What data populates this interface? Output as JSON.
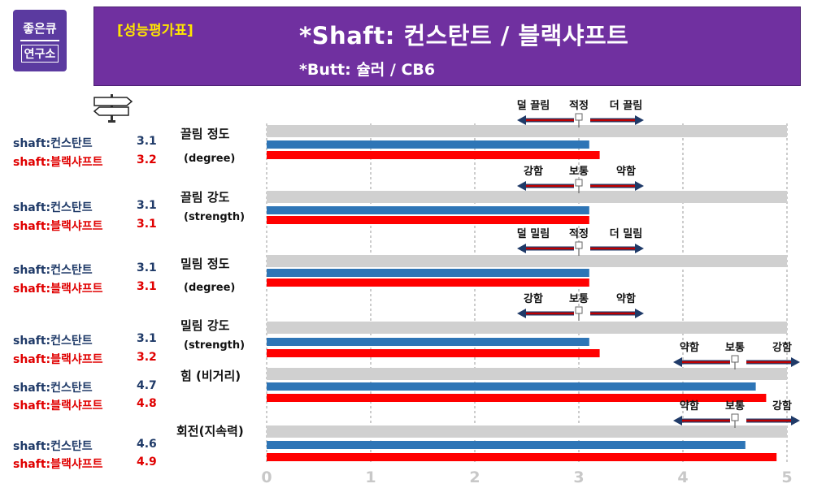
{
  "logo": {
    "line1": "좋은큐",
    "line2": "연구소"
  },
  "header": {
    "badge": "[성능평가표]",
    "title": "*Shaft: 컨스탄트 / 블랙샤프트",
    "subtitle": "*Butt: 슐러 / CB6"
  },
  "legend": [
    {
      "label": "shaft:컨스탄트",
      "value": "3.1",
      "color": "blue"
    },
    {
      "label": "shaft:블랙샤프트",
      "value": "3.2",
      "color": "red"
    },
    {
      "label": "shaft:컨스탄트",
      "value": "3.1",
      "color": "blue"
    },
    {
      "label": "shaft:블랙샤프트",
      "value": "3.1",
      "color": "red"
    },
    {
      "label": "shaft:컨스탄트",
      "value": "3.1",
      "color": "blue"
    },
    {
      "label": "shaft:블랙샤프트",
      "value": "3.1",
      "color": "red"
    },
    {
      "label": "shaft:컨스탄트",
      "value": "3.1",
      "color": "blue"
    },
    {
      "label": "shaft:블랙샤프트",
      "value": "3.2",
      "color": "red"
    },
    {
      "label": "shaft:컨스탄트",
      "value": "4.7",
      "color": "blue"
    },
    {
      "label": "shaft:블랙샤프트",
      "value": "4.8",
      "color": "red"
    },
    {
      "label": "shaft:컨스탄트",
      "value": "4.6",
      "color": "blue"
    },
    {
      "label": "shaft:블랙샤프트",
      "value": "4.9",
      "color": "red"
    }
  ],
  "chart_data": {
    "type": "bar",
    "orientation": "horizontal",
    "xlim": [
      0,
      5
    ],
    "x_ticks": [
      "0",
      "1",
      "2",
      "3",
      "4",
      "5"
    ],
    "grid": "vertical dashed",
    "categories": [
      {
        "label": "끌림 정도",
        "sub": "(degree)"
      },
      {
        "label": "끌림 강도",
        "sub": "(strength)"
      },
      {
        "label": "밀림 정도",
        "sub": "(degree)"
      },
      {
        "label": "밀림 강도",
        "sub": "(strength)"
      },
      {
        "label": "힘 (비거리)",
        "sub": ""
      },
      {
        "label": "회전(지속력)",
        "sub": ""
      }
    ],
    "series": [
      {
        "values": [
          3.1,
          3.1,
          3.1,
          3.1,
          4.7,
          4.6
        ],
        "color": "#2e75b6"
      },
      {
        "values": [
          3.2,
          3.1,
          3.1,
          3.2,
          4.8,
          4.9
        ],
        "color": "#ff0000"
      }
    ],
    "background_bar_color": "#d0d0d0",
    "annotations": [
      {
        "left": "덜 끌림",
        "center": "적정",
        "right": "더 끌림",
        "at": 3
      },
      {
        "left": "강함",
        "center": "보통",
        "right": "약함",
        "at": 3
      },
      {
        "left": "덜 밀림",
        "center": "적정",
        "right": "더 밀림",
        "at": 3
      },
      {
        "left": "강함",
        "center": "보통",
        "right": "약함",
        "at": 3
      },
      {
        "left": "약함",
        "center": "보통",
        "right": "강함",
        "at": 4.5
      },
      {
        "left": "약함",
        "center": "보통",
        "right": "강함",
        "at": 4.5
      }
    ]
  }
}
